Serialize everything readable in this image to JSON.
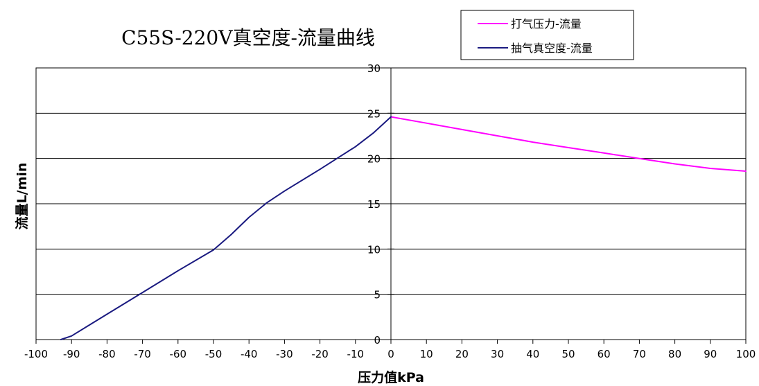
{
  "chart_data": {
    "type": "line",
    "title": "C55S-220V真空度-流量曲线",
    "xlabel": "压力值kPa",
    "ylabel": "流量L/min",
    "xlim": [
      -100,
      100
    ],
    "ylim": [
      0,
      30
    ],
    "xticks": [
      -100,
      -90,
      -80,
      -70,
      -60,
      -50,
      -40,
      -30,
      -20,
      -10,
      0,
      10,
      20,
      30,
      40,
      50,
      60,
      70,
      80,
      90,
      100
    ],
    "yticks": [
      0,
      5,
      10,
      15,
      20,
      25,
      30
    ],
    "grid": "horizontal",
    "legend_position": "top-right",
    "series": [
      {
        "name": "打气压力-流量",
        "color": "#ff00ff",
        "x": [
          0,
          10,
          20,
          30,
          40,
          50,
          60,
          70,
          80,
          90,
          100
        ],
        "y": [
          24.6,
          23.9,
          23.2,
          22.5,
          21.8,
          21.2,
          20.6,
          20.0,
          19.4,
          18.9,
          18.6
        ]
      },
      {
        "name": "抽气真空度-流量",
        "color": "#1a1a80",
        "x": [
          -93,
          -90,
          -80,
          -70,
          -60,
          -50,
          -45,
          -40,
          -35,
          -30,
          -20,
          -10,
          -5,
          0
        ],
        "y": [
          0,
          0.4,
          2.8,
          5.2,
          7.6,
          9.9,
          11.6,
          13.5,
          15.1,
          16.4,
          18.8,
          21.3,
          22.8,
          24.6
        ]
      }
    ]
  }
}
